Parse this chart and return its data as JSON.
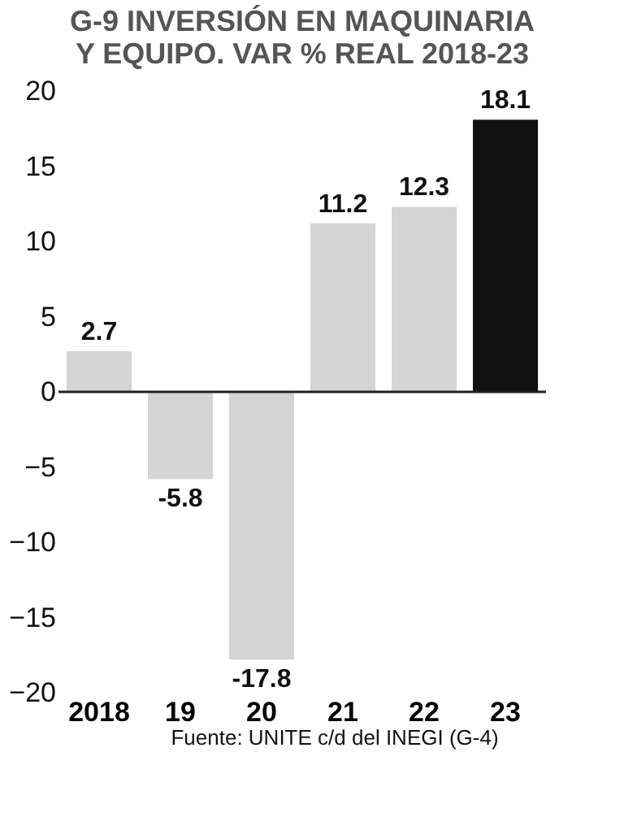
{
  "chart_data": {
    "type": "bar",
    "title": "G-9 INVERSIÓN EN MAQUINARIA\nY EQUIPO. VAR % REAL 2018-23",
    "categories": [
      "2018",
      "19",
      "20",
      "21",
      "22",
      "23"
    ],
    "values": [
      2.7,
      -5.8,
      -17.8,
      11.2,
      12.3,
      18.1
    ],
    "colors": [
      "#d4d4d4",
      "#d4d4d4",
      "#d4d4d4",
      "#d4d4d4",
      "#d4d4d4",
      "#111111"
    ],
    "ylim": [
      -20,
      20
    ],
    "yticks": [
      -20,
      -15,
      -10,
      -5,
      0,
      5,
      10,
      15,
      20
    ],
    "ref_lines": [
      {
        "axis": "y",
        "value": 0,
        "color": "#222222"
      }
    ],
    "data_labels": true,
    "grid": false,
    "annotations": [
      "Fuente: UNITE c/d del INEGI (G-4)"
    ]
  }
}
